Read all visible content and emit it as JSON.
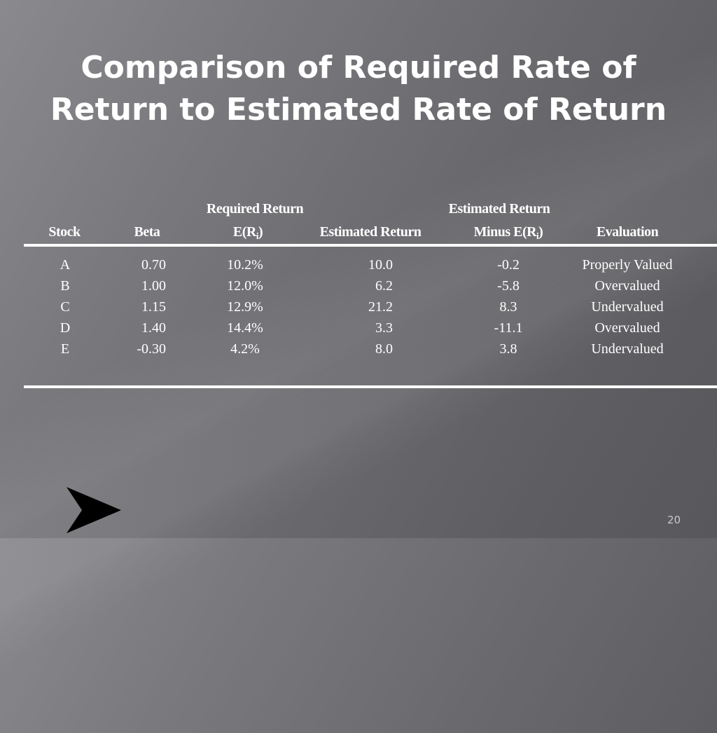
{
  "slide": {
    "title_line1": "Comparison of Required Rate of",
    "title_line2": "Return to Estimated Rate of Return",
    "page_number": "20"
  },
  "table": {
    "headers": {
      "stock": "Stock",
      "beta": "Beta",
      "required_line1": "Required Return",
      "required_line2": "E(R",
      "required_sub": "i",
      "required_close": ")",
      "estimated": "Estimated Return",
      "diff_line1": "Estimated Return",
      "diff_line2": "Minus E(R",
      "diff_sub": "i",
      "diff_close": ")",
      "evaluation": "Evaluation"
    },
    "rows": [
      {
        "stock": "A",
        "beta": "0.70",
        "required": "10.2%",
        "estimated": "10.0",
        "diff": "-0.2",
        "evaluation": "Properly Valued"
      },
      {
        "stock": "B",
        "beta": "1.00",
        "required": "12.0%",
        "estimated": "6.2",
        "diff": "-5.8",
        "evaluation": "Overvalued"
      },
      {
        "stock": "C",
        "beta": "1.15",
        "required": "12.9%",
        "estimated": "21.2",
        "diff": "8.3",
        "evaluation": "Undervalued"
      },
      {
        "stock": "D",
        "beta": "1.40",
        "required": "14.4%",
        "estimated": "3.3",
        "diff": "-11.1",
        "evaluation": "Overvalued"
      },
      {
        "stock": "E",
        "beta": "-0.30",
        "required": "4.2%",
        "estimated": "8.0",
        "diff": "3.8",
        "evaluation": "Undervalued"
      }
    ]
  },
  "icons": {
    "nav_arrow": "arrow-right-icon"
  },
  "colors": {
    "text": "#ffffff",
    "background": "#6a6a6e"
  }
}
